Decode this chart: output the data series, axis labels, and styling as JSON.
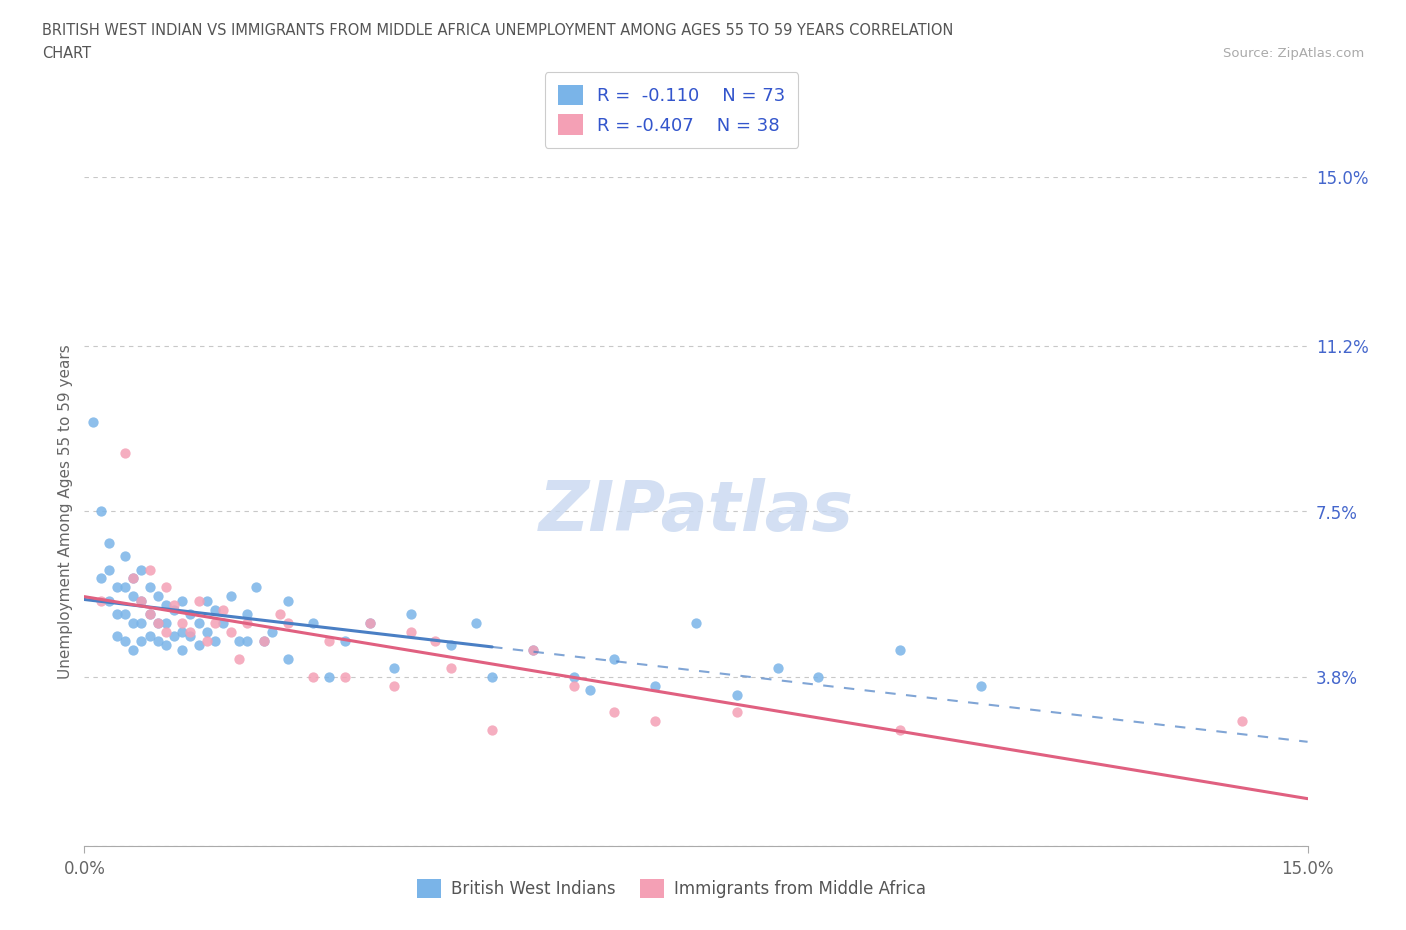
{
  "title_line1": "BRITISH WEST INDIAN VS IMMIGRANTS FROM MIDDLE AFRICA UNEMPLOYMENT AMONG AGES 55 TO 59 YEARS CORRELATION",
  "title_line2": "CHART",
  "source": "Source: ZipAtlas.com",
  "ylabel": "Unemployment Among Ages 55 to 59 years",
  "xlim": [
    0.0,
    0.15
  ],
  "ylim": [
    0.0,
    0.15
  ],
  "ytick_values": [
    0.0,
    0.038,
    0.075,
    0.112,
    0.15
  ],
  "ytick_labels": [
    "",
    "3.8%",
    "7.5%",
    "11.2%",
    "15.0%"
  ],
  "xtick_values": [
    0.0,
    0.15
  ],
  "xtick_labels": [
    "0.0%",
    "15.0%"
  ],
  "grid_color": "#c8c8c8",
  "background_color": "#ffffff",
  "series1_color": "#7ab4e8",
  "series2_color": "#f4a0b5",
  "series1_trendline_color": "#4a7fc4",
  "series2_trendline_color": "#e06080",
  "series1_label": "British West Indians",
  "series2_label": "Immigrants from Middle Africa",
  "R1": -0.11,
  "N1": 73,
  "R2": -0.407,
  "N2": 38,
  "legend_R_color": "#3355cc",
  "watermark_text": "ZIPatlas",
  "watermark_color": "#c8d8f0",
  "title_color": "#555555",
  "source_color": "#aaaaaa",
  "ytick_color": "#4466cc",
  "xtick_color": "#666666",
  "series1_x": [
    0.001,
    0.002,
    0.002,
    0.003,
    0.003,
    0.003,
    0.004,
    0.004,
    0.004,
    0.005,
    0.005,
    0.005,
    0.005,
    0.006,
    0.006,
    0.006,
    0.006,
    0.007,
    0.007,
    0.007,
    0.007,
    0.008,
    0.008,
    0.008,
    0.009,
    0.009,
    0.009,
    0.01,
    0.01,
    0.01,
    0.011,
    0.011,
    0.012,
    0.012,
    0.012,
    0.013,
    0.013,
    0.014,
    0.014,
    0.015,
    0.015,
    0.016,
    0.016,
    0.017,
    0.018,
    0.019,
    0.02,
    0.02,
    0.021,
    0.022,
    0.023,
    0.025,
    0.025,
    0.028,
    0.03,
    0.032,
    0.035,
    0.038,
    0.04,
    0.045,
    0.048,
    0.05,
    0.055,
    0.06,
    0.062,
    0.065,
    0.07,
    0.075,
    0.08,
    0.085,
    0.09,
    0.1,
    0.11
  ],
  "series1_y": [
    0.095,
    0.075,
    0.06,
    0.068,
    0.062,
    0.055,
    0.058,
    0.052,
    0.047,
    0.065,
    0.058,
    0.052,
    0.046,
    0.06,
    0.056,
    0.05,
    0.044,
    0.062,
    0.055,
    0.05,
    0.046,
    0.058,
    0.052,
    0.047,
    0.056,
    0.05,
    0.046,
    0.054,
    0.05,
    0.045,
    0.053,
    0.047,
    0.055,
    0.048,
    0.044,
    0.052,
    0.047,
    0.05,
    0.045,
    0.055,
    0.048,
    0.053,
    0.046,
    0.05,
    0.056,
    0.046,
    0.052,
    0.046,
    0.058,
    0.046,
    0.048,
    0.055,
    0.042,
    0.05,
    0.038,
    0.046,
    0.05,
    0.04,
    0.052,
    0.045,
    0.05,
    0.038,
    0.044,
    0.038,
    0.035,
    0.042,
    0.036,
    0.05,
    0.034,
    0.04,
    0.038,
    0.044,
    0.036
  ],
  "series2_x": [
    0.002,
    0.005,
    0.006,
    0.007,
    0.008,
    0.008,
    0.009,
    0.01,
    0.01,
    0.011,
    0.012,
    0.013,
    0.014,
    0.015,
    0.016,
    0.017,
    0.018,
    0.019,
    0.02,
    0.022,
    0.024,
    0.025,
    0.028,
    0.03,
    0.032,
    0.035,
    0.038,
    0.04,
    0.043,
    0.045,
    0.05,
    0.055,
    0.06,
    0.065,
    0.07,
    0.08,
    0.1,
    0.142
  ],
  "series2_y": [
    0.055,
    0.088,
    0.06,
    0.055,
    0.062,
    0.052,
    0.05,
    0.058,
    0.048,
    0.054,
    0.05,
    0.048,
    0.055,
    0.046,
    0.05,
    0.053,
    0.048,
    0.042,
    0.05,
    0.046,
    0.052,
    0.05,
    0.038,
    0.046,
    0.038,
    0.05,
    0.036,
    0.048,
    0.046,
    0.04,
    0.026,
    0.044,
    0.036,
    0.03,
    0.028,
    0.03,
    0.026,
    0.028
  ],
  "trendline1_x_solid_end": 0.05,
  "trendline1_intercept": 0.052,
  "trendline1_slope": -0.12,
  "trendline2_intercept": 0.06,
  "trendline2_slope": -0.38
}
